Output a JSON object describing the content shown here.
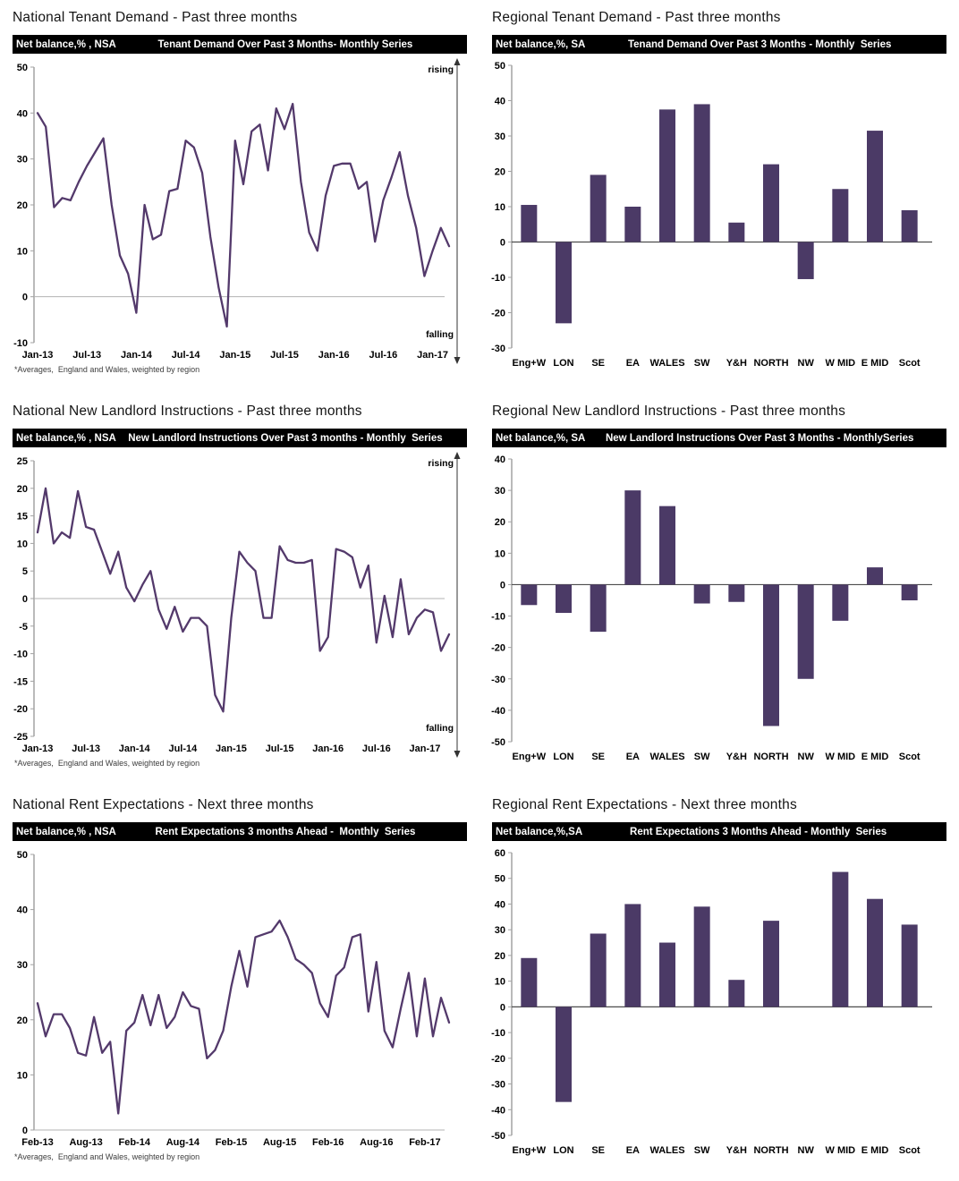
{
  "colors": {
    "line": "#53396B",
    "bar": "#4B3A66",
    "axis": "#a3a3a3",
    "zero_line_light": "#b3b3b3",
    "zero_line_dark": "#4d4d4d",
    "header_bg": "#000000",
    "header_text": "#ffffff",
    "arrow": "#333333"
  },
  "panels": [
    {
      "title": "National Tenant Demand - Past three months",
      "units": "Net balance,% , NSA",
      "header": "Tenant Demand Over Past 3 Months- Monthly Series",
      "footnote": "*Averages,  England and Wales, weighted by region"
    },
    {
      "title": "Regional Tenant Demand - Past three months",
      "units": "Net balance,%, SA",
      "header": "Tenand Demand Over Past 3 Months - Monthly  Series"
    },
    {
      "title": "National New Landlord Instructions - Past three months",
      "units": "Net balance,% , NSA",
      "header": "New Landlord Instructions Over Past 3 months - Monthly  Series",
      "footnote": "*Averages,  England and Wales, weighted by region"
    },
    {
      "title": "Regional New Landlord Instructions - Past three months",
      "units": "Net balance,%, SA",
      "header": "New Landlord Instructions Over Past 3 Months - MonthlySeries"
    },
    {
      "title": "National Rent Expectations - Next three months",
      "units": "Net balance,% , NSA",
      "header": "Rent Expectations 3 months Ahead -  Monthly  Series",
      "footnote": "*Averages,  England and Wales, weighted by region"
    },
    {
      "title": "Regional Rent Expectations - Next three months",
      "units": "Net balance,%,SA",
      "header": "Rent Expectations 3 Months Ahead - Monthly  Series"
    }
  ],
  "chart_data": [
    {
      "type": "line",
      "title": "Tenant Demand Over Past 3 Months- Monthly Series",
      "ylabel": "Net balance, %, NSA",
      "x_start": "Jan-13",
      "x_tick_labels": [
        "Jan-13",
        "Jul-13",
        "Jan-14",
        "Jul-14",
        "Jan-15",
        "Jul-15",
        "Jan-16",
        "Jul-16",
        "Jan-17"
      ],
      "tick_interval": 6,
      "values": [
        40,
        37,
        19.5,
        21.5,
        21,
        25,
        28.5,
        31.5,
        34.5,
        20,
        9,
        5,
        -3.5,
        20,
        12.5,
        13.5,
        23,
        23.5,
        34,
        32.5,
        27,
        13,
        2,
        -6.5,
        34,
        24.5,
        36,
        37.5,
        27.5,
        41,
        36.5,
        42,
        25,
        14,
        10,
        22,
        28.5,
        29,
        29,
        23.5,
        25,
        12,
        21,
        26,
        31.5,
        22,
        15,
        4.5,
        10,
        15,
        11
      ],
      "ylim": [
        -10,
        50
      ],
      "ytick_step": 10,
      "grid": false,
      "annotations": {
        "top": "rising",
        "bottom": "falling"
      }
    },
    {
      "type": "bar",
      "title": "Tenand Demand Over Past 3 Months - Monthly Series",
      "ylabel": "Net balance, %, SA",
      "categories": [
        "Eng+W",
        "LON",
        "SE",
        "EA",
        "WALES",
        "SW",
        "Y&H",
        "NORTH",
        "NW",
        "W MID",
        "E MID",
        "Scot"
      ],
      "values": [
        10.5,
        -23,
        19,
        10,
        37.5,
        39,
        5.5,
        22,
        -10.5,
        15,
        31.5,
        9
      ],
      "ylim": [
        -30,
        50
      ],
      "ytick_step": 10,
      "grid": false
    },
    {
      "type": "line",
      "title": "New Landlord Instructions Over Past 3 months - Monthly Series",
      "ylabel": "Net balance, %, NSA",
      "x_start": "Jan-13",
      "x_tick_labels": [
        "Jan-13",
        "Jul-13",
        "Jan-14",
        "Jul-14",
        "Jan-15",
        "Jul-15",
        "Jan-16",
        "Jul-16",
        "Jan-17"
      ],
      "tick_interval": 6,
      "values": [
        12,
        20,
        10,
        12,
        11,
        19.5,
        13,
        12.5,
        8.5,
        4.5,
        8.5,
        2,
        -0.5,
        2.5,
        5,
        -2,
        -5.5,
        -1.5,
        -6,
        -3.5,
        -3.5,
        -5,
        -17.5,
        -20.5,
        -3.5,
        8.5,
        6.5,
        5,
        -3.5,
        -3.5,
        9.5,
        7,
        6.5,
        6.5,
        7,
        -9.5,
        -7,
        9,
        8.5,
        7.5,
        2,
        6,
        -8,
        0.5,
        -7,
        3.5,
        -6.5,
        -3.5,
        -2,
        -2.5,
        -9.5,
        -6.5
      ],
      "ylim": [
        -25,
        25
      ],
      "ytick_step": 5,
      "grid": false,
      "annotations": {
        "top": "rising",
        "bottom": "falling"
      }
    },
    {
      "type": "bar",
      "title": "New Landlord Instructions Over Past 3 Months - MonthlySeries",
      "ylabel": "Net balance, %, SA",
      "categories": [
        "Eng+W",
        "LON",
        "SE",
        "EA",
        "WALES",
        "SW",
        "Y&H",
        "NORTH",
        "NW",
        "W MID",
        "E MID",
        "Scot"
      ],
      "values": [
        -6.5,
        -9,
        -15,
        30,
        25,
        -6,
        -5.5,
        -45,
        -30,
        -11.5,
        5.5,
        -5
      ],
      "ylim": [
        -50,
        40
      ],
      "ytick_step": 10,
      "grid": false
    },
    {
      "type": "line",
      "title": "Rent Expectations 3 months Ahead - Monthly Series",
      "ylabel": "Net balance, %, NSA",
      "x_start": "Feb-13",
      "x_tick_labels": [
        "Feb-13",
        "Aug-13",
        "Feb-14",
        "Aug-14",
        "Feb-15",
        "Aug-15",
        "Feb-16",
        "Aug-16",
        "Feb-17"
      ],
      "tick_interval": 6,
      "values": [
        23,
        17,
        21,
        21,
        18.5,
        14,
        13.5,
        20.5,
        14,
        16,
        3,
        18,
        19.5,
        24.5,
        19,
        24.5,
        18.5,
        20.5,
        25,
        22.5,
        22,
        13,
        14.5,
        18,
        26,
        32.5,
        26,
        35,
        35.5,
        36,
        38,
        35,
        31,
        30,
        28.5,
        23,
        20.5,
        28,
        29.5,
        35,
        35.5,
        21.5,
        30.5,
        18,
        15,
        22,
        28.5,
        17,
        27.5,
        17,
        24,
        19.5
      ],
      "ylim": [
        0,
        50
      ],
      "ytick_step": 10,
      "grid": false
    },
    {
      "type": "bar",
      "title": "Rent Expectations 3 Months Ahead - Monthly Series",
      "ylabel": "Net balance, %, SA",
      "categories": [
        "Eng+W",
        "LON",
        "SE",
        "EA",
        "WALES",
        "SW",
        "Y&H",
        "NORTH",
        "NW",
        "W MID",
        "E MID",
        "Scot"
      ],
      "values": [
        19,
        -37,
        28.5,
        40,
        25,
        39,
        10.5,
        33.5,
        0,
        52.5,
        42,
        32
      ],
      "ylim": [
        -50,
        60
      ],
      "ytick_step": 10,
      "grid": false
    }
  ]
}
